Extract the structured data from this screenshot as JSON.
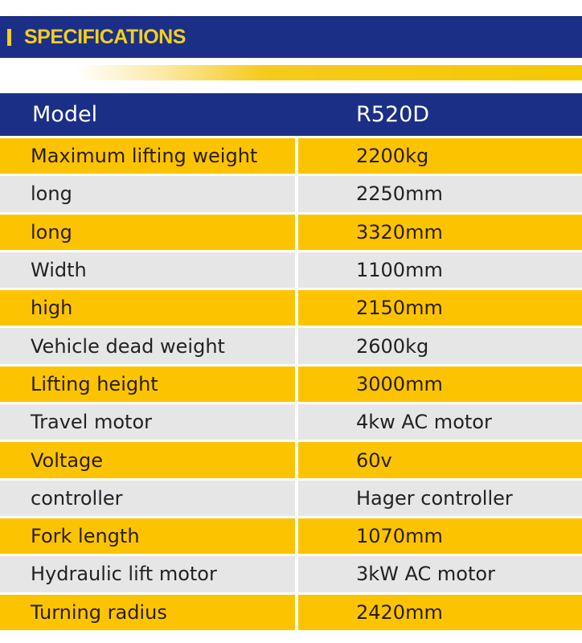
{
  "banner": {
    "title": "SPECIFICATIONS"
  },
  "colors": {
    "navy": "#1b2f86",
    "yellow": "#fcc400",
    "gray": "#e6e6e6",
    "title_yellow": "#f2cf1f"
  },
  "table": {
    "header": {
      "label": "Model",
      "value": "R520D"
    },
    "rows": [
      {
        "label": "Maximum lifting weight",
        "value": "2200kg"
      },
      {
        "label": "long",
        "value": "2250mm"
      },
      {
        "label": "long",
        "value": "3320mm"
      },
      {
        "label": "Width",
        "value": "1100mm"
      },
      {
        "label": "high",
        "value": "2150mm"
      },
      {
        "label": "Vehicle dead weight",
        "value": "2600kg"
      },
      {
        "label": "Lifting height",
        "value": "3000mm"
      },
      {
        "label": "Travel motor",
        "value": "4kw AC motor"
      },
      {
        "label": "Voltage",
        "value": "60v"
      },
      {
        "label": "controller",
        "value": "Hager controller"
      },
      {
        "label": "Fork length",
        "value": "1070mm"
      },
      {
        "label": "Hydraulic lift motor",
        "value": "3kW AC motor"
      },
      {
        "label": "Turning radius",
        "value": "2420mm"
      }
    ]
  }
}
